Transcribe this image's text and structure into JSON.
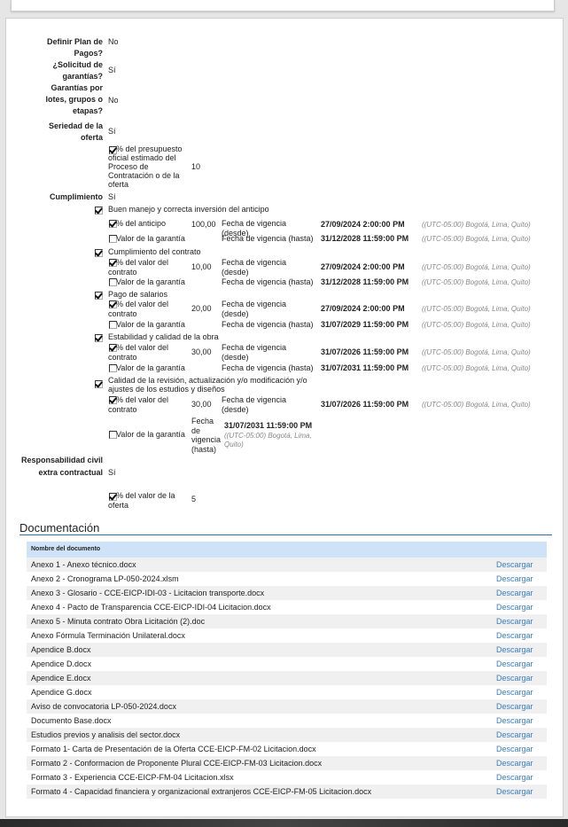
{
  "fields": [
    {
      "label": "Definir Plan de Pagos?",
      "value": "No"
    },
    {
      "label": "¿Solicitud de garantías?",
      "value": "Sí"
    },
    {
      "label": "Garantías por lotes, grupos o etapas?",
      "value": "No"
    },
    {
      "label": "Seriedad de la oferta",
      "value": "Sí"
    },
    {
      "label": "Cumplimiento",
      "value": "Sí"
    },
    {
      "label": "Responsabilidad civil extra contractual",
      "value": "Sí"
    }
  ],
  "seriedad_item": {
    "label": "% del presupuesto oficial estimado del Proceso de Contratación o de la oferta",
    "value": "10",
    "checked": true
  },
  "responsabilidad_item": {
    "label": "% del valor de la oferta",
    "value": "5",
    "checked": true
  },
  "timezone": "((UTC-05:00) Bogotá, Lima, Quito)",
  "desde_label": "Fecha de vigencia (desde)",
  "hasta_label": "Fecha de vigencia (hasta)",
  "valor_label": "Valor de la garantía",
  "cumplimiento": [
    {
      "name": "Buen manejo y correcta inversión del anticipo",
      "pct_label": "% del anticipo",
      "pct": "100,00",
      "desde": "27/09/2024 2:00:00 PM",
      "hasta": "31/12/2028 11:59:00 PM"
    },
    {
      "name": "Cumplimiento del contrato",
      "pct_label": "% del valor del contrato",
      "pct": "10,00",
      "desde": "27/09/2024 2:00:00 PM",
      "hasta": "31/12/2028 11:59:00 PM"
    },
    {
      "name": "Pago de salarios",
      "pct_label": "% del valor del contrato",
      "pct": "20,00",
      "desde": "27/09/2024 2:00:00 PM",
      "hasta": "31/07/2029 11:59:00 PM"
    },
    {
      "name": "Estabilidad y calidad de la obra",
      "pct_label": "% del valor del contrato",
      "pct": "30,00",
      "desde": "31/07/2026 11:59:00 PM",
      "hasta": "31/07/2031 11:59:00 PM"
    },
    {
      "name": "Calidad de la revisión, actualización y/o modificación y/o ajustes de los estudios y diseños",
      "pct_label": "% del valor del contrato",
      "pct": "30,00",
      "desde": "31/07/2026 11:59:00 PM",
      "hasta": "31/07/2031 11:59:00 PM"
    }
  ],
  "documentacion": {
    "title": "Documentación",
    "column": "Nombre del documento",
    "action": "Descargar",
    "docs": [
      "Anexo 1 - Anexo técnico.docx",
      "Anexo 2 - Cronograma LP-050-2024.xlsm",
      "Anexo 3 - Glosario - CCE-EICP-IDI-03 - Licitacion transporte.docx",
      "Anexo 4 - Pacto de Transparencia CCE-EICP-IDI-04 Licitacion.docx",
      "Anexo 5 - Minuta contrato Obra Licitación (2).doc",
      "Anexo Fórmula Terminación Unilateral.docx",
      "Apendice B.docx",
      "Apendice D.docx",
      "Apendice E.docx",
      "Apendice G.docx",
      "Aviso de convocatoria LP-050-2024.docx",
      "Documento Base.docx",
      "Estudios previos y analisis del sector.docx",
      "Formato 1- Carta de Presentación de la Oferta CCE-EICP-FM-02 Licitacion.docx",
      "Formato 2 - Conformacion de Proponente Plural CCE-EICP-FM-03 Licitacion.docx",
      "Formato 3 - Experiencia CCE-EICP-FM-04 Licitacion.xlsx",
      "Formato 4 - Capacidad financiera y organizacional extranjeros CCE-EICP-FM-05 Licitacion.docx"
    ]
  }
}
